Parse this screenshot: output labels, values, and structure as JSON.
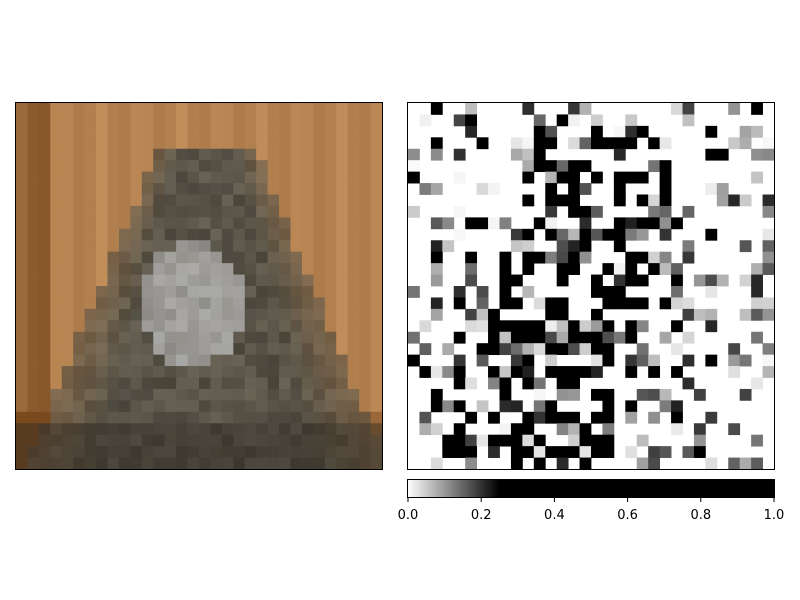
{
  "chart_data": [
    {
      "type": "image",
      "content": "pixelated 32x32 photo of a cat (RGB)",
      "grid": {
        "rows": 32,
        "cols": 32
      },
      "axes_visible": false,
      "palette": {
        "bg_light": "#d9a56f",
        "bg_dark": "#7a4a1e",
        "cat_dark": "#2f2a22",
        "cat_mid": "#6f6a5c",
        "cat_light": "#b3b3b3"
      }
    },
    {
      "type": "heatmap",
      "colormap": "gray_r",
      "vmin": 0.0,
      "vmax": 1.0,
      "grid": {
        "rows": 32,
        "cols": 32
      },
      "axes_visible": false,
      "note": "saliency-style map, dense black blocks in center and lower-left",
      "colorbar": {
        "orientation": "horizontal",
        "ticks": [
          "0.0",
          "0.2",
          "0.4",
          "0.6",
          "0.8",
          "1.0"
        ],
        "saturation_point": 0.25
      },
      "seed": 7
    }
  ]
}
